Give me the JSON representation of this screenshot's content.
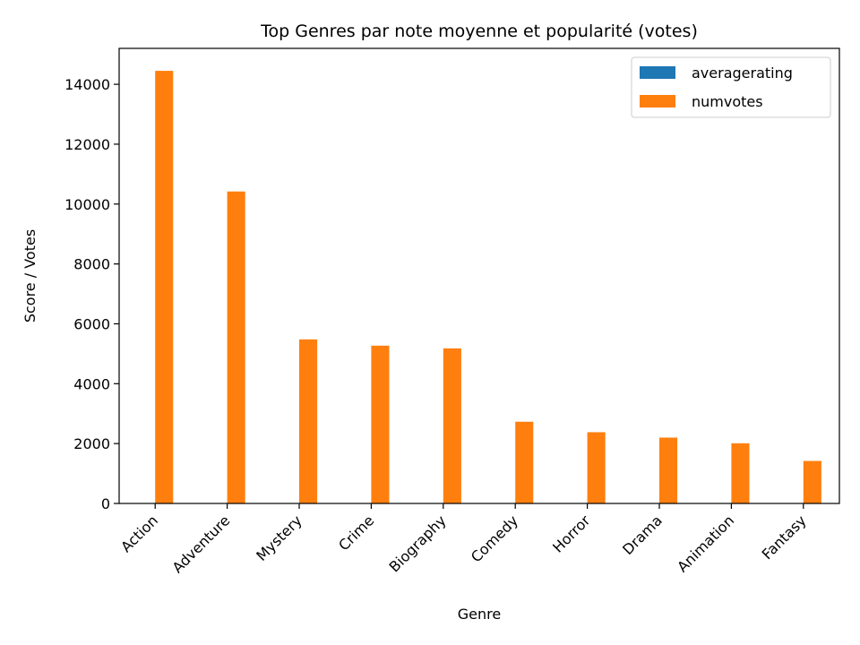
{
  "chart_data": {
    "type": "bar",
    "title": "Top Genres par note moyenne et popularité (votes)",
    "xlabel": "Genre",
    "ylabel": "Score / Votes",
    "categories": [
      "Action",
      "Adventure",
      "Mystery",
      "Crime",
      "Biography",
      "Comedy",
      "Horror",
      "Drama",
      "Animation",
      "Fantasy"
    ],
    "series": [
      {
        "name": "averagerating",
        "color": "#1f77b4",
        "values": [
          6.0,
          6.2,
          6.3,
          6.3,
          7.0,
          6.0,
          5.0,
          6.4,
          6.3,
          5.9
        ]
      },
      {
        "name": "numvotes",
        "color": "#ff7f0e",
        "values": [
          14450,
          10420,
          5480,
          5270,
          5180,
          2730,
          2380,
          2200,
          2010,
          1420
        ]
      }
    ],
    "yticks": [
      0,
      2000,
      4000,
      6000,
      8000,
      10000,
      12000,
      14000
    ],
    "ylim": [
      0,
      15200
    ],
    "grid": false,
    "legend_position": "top-right"
  }
}
